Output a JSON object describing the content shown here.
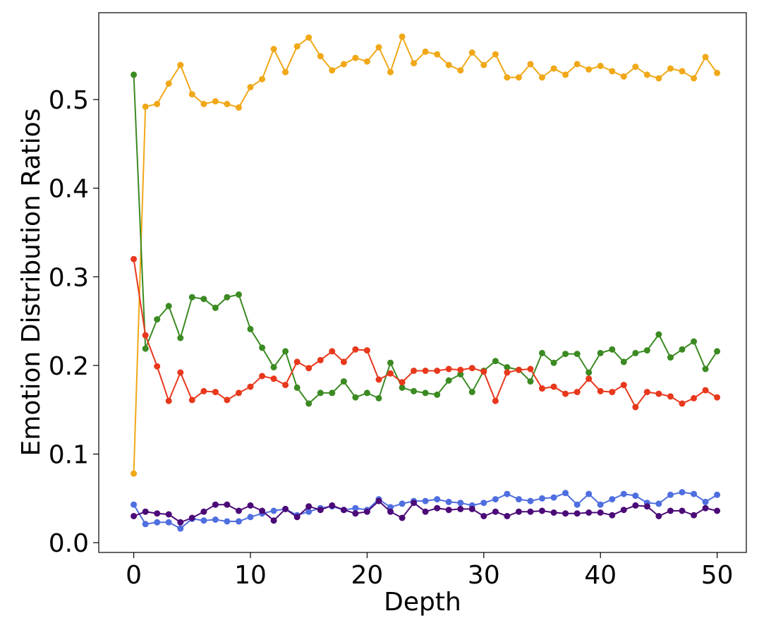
{
  "chart_data": {
    "type": "line",
    "xlabel": "Depth",
    "ylabel": "Emotion Distribution Ratios",
    "xlim": [
      -3,
      52.5
    ],
    "ylim": [
      -0.011,
      0.598
    ],
    "xticks": [
      0,
      10,
      20,
      30,
      40,
      50
    ],
    "yticks": [
      0.0,
      0.1,
      0.2,
      0.3,
      0.4,
      0.5
    ],
    "xtick_labels": [
      "0",
      "10",
      "20",
      "30",
      "40",
      "50"
    ],
    "ytick_labels": [
      "0.0",
      "0.1",
      "0.2",
      "0.3",
      "0.4",
      "0.5"
    ],
    "grid": false,
    "legend": "none",
    "x": [
      0,
      1,
      2,
      3,
      4,
      5,
      6,
      7,
      8,
      9,
      10,
      11,
      12,
      13,
      14,
      15,
      16,
      17,
      18,
      19,
      20,
      21,
      22,
      23,
      24,
      25,
      26,
      27,
      28,
      29,
      30,
      31,
      32,
      33,
      34,
      35,
      36,
      37,
      38,
      39,
      40,
      41,
      42,
      43,
      44,
      45,
      46,
      47,
      48,
      49,
      50
    ],
    "series": [
      {
        "color": "#f0a818",
        "values": [
          0.078,
          0.492,
          0.495,
          0.518,
          0.539,
          0.506,
          0.495,
          0.498,
          0.495,
          0.491,
          0.514,
          0.523,
          0.557,
          0.531,
          0.56,
          0.57,
          0.549,
          0.533,
          0.54,
          0.547,
          0.543,
          0.559,
          0.531,
          0.571,
          0.541,
          0.554,
          0.551,
          0.539,
          0.533,
          0.553,
          0.539,
          0.551,
          0.525,
          0.525,
          0.54,
          0.525,
          0.535,
          0.528,
          0.54,
          0.534,
          0.538,
          0.532,
          0.526,
          0.537,
          0.528,
          0.524,
          0.535,
          0.532,
          0.524,
          0.548,
          0.53
        ]
      },
      {
        "color": "#3b8a22",
        "values": [
          0.528,
          0.219,
          0.252,
          0.267,
          0.231,
          0.277,
          0.275,
          0.265,
          0.277,
          0.28,
          0.241,
          0.22,
          0.198,
          0.216,
          0.175,
          0.157,
          0.169,
          0.169,
          0.182,
          0.164,
          0.169,
          0.163,
          0.203,
          0.175,
          0.171,
          0.169,
          0.167,
          0.183,
          0.19,
          0.17,
          0.194,
          0.205,
          0.198,
          0.195,
          0.182,
          0.214,
          0.203,
          0.213,
          0.213,
          0.192,
          0.214,
          0.218,
          0.204,
          0.214,
          0.217,
          0.235,
          0.209,
          0.218,
          0.227,
          0.196,
          0.216
        ]
      },
      {
        "color": "#e8381c",
        "values": [
          0.32,
          0.234,
          0.199,
          0.16,
          0.192,
          0.161,
          0.171,
          0.17,
          0.161,
          0.169,
          0.176,
          0.188,
          0.185,
          0.178,
          0.204,
          0.197,
          0.206,
          0.216,
          0.204,
          0.218,
          0.217,
          0.184,
          0.191,
          0.181,
          0.194,
          0.194,
          0.194,
          0.196,
          0.195,
          0.197,
          0.193,
          0.16,
          0.192,
          0.195,
          0.196,
          0.174,
          0.176,
          0.168,
          0.17,
          0.185,
          0.171,
          0.17,
          0.178,
          0.153,
          0.17,
          0.168,
          0.165,
          0.157,
          0.163,
          0.172,
          0.164
        ]
      },
      {
        "color": "#4f6ee0",
        "values": [
          0.043,
          0.021,
          0.023,
          0.023,
          0.016,
          0.027,
          0.025,
          0.026,
          0.024,
          0.024,
          0.029,
          0.033,
          0.036,
          0.038,
          0.031,
          0.035,
          0.039,
          0.041,
          0.037,
          0.039,
          0.037,
          0.049,
          0.04,
          0.044,
          0.047,
          0.047,
          0.049,
          0.046,
          0.045,
          0.042,
          0.045,
          0.049,
          0.055,
          0.049,
          0.047,
          0.05,
          0.051,
          0.056,
          0.043,
          0.055,
          0.043,
          0.049,
          0.055,
          0.053,
          0.045,
          0.044,
          0.054,
          0.057,
          0.055,
          0.046,
          0.054
        ]
      },
      {
        "color": "#4b0a78",
        "values": [
          0.03,
          0.035,
          0.033,
          0.032,
          0.023,
          0.028,
          0.035,
          0.043,
          0.043,
          0.036,
          0.042,
          0.036,
          0.025,
          0.038,
          0.029,
          0.041,
          0.037,
          0.042,
          0.037,
          0.033,
          0.035,
          0.047,
          0.035,
          0.028,
          0.045,
          0.035,
          0.039,
          0.037,
          0.038,
          0.038,
          0.03,
          0.035,
          0.03,
          0.035,
          0.035,
          0.036,
          0.034,
          0.033,
          0.033,
          0.034,
          0.034,
          0.031,
          0.037,
          0.042,
          0.041,
          0.03,
          0.036,
          0.036,
          0.031,
          0.039,
          0.036
        ]
      }
    ]
  }
}
